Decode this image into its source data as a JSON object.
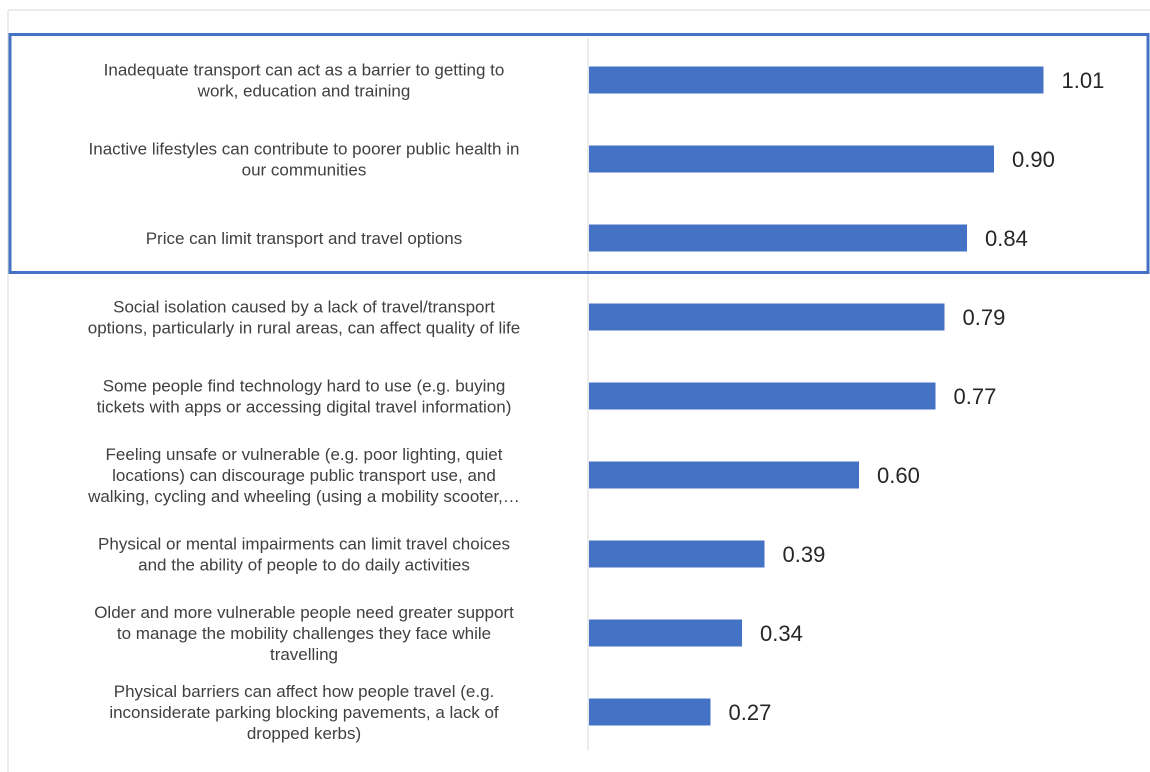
{
  "chart_data": {
    "type": "bar",
    "orientation": "horizontal",
    "title": "",
    "xlabel": "",
    "ylabel": "",
    "xlim": [
      0,
      1.1
    ],
    "grid": false,
    "legend": "none",
    "bar_color": "#4472C4",
    "highlight_color": "#4472C4",
    "highlight_count": 3,
    "categories": [
      [
        "Inadequate transport can act as a barrier to getting to",
        "work, education and training"
      ],
      [
        "Inactive lifestyles can contribute to poorer public health in",
        "our communities"
      ],
      [
        "Price can limit transport and travel options"
      ],
      [
        "Social isolation caused by a lack of travel/transport",
        "options, particularly in rural areas, can affect quality of life"
      ],
      [
        "Some people find technology hard to use (e.g. buying",
        "tickets with apps or accessing digital travel information)"
      ],
      [
        "Feeling unsafe or vulnerable (e.g. poor lighting, quiet",
        "locations) can discourage public transport use, and",
        "walking, cycling and wheeling (using a mobility scooter,…"
      ],
      [
        "Physical or mental impairments can limit travel choices",
        "and the ability of people to do daily activities"
      ],
      [
        "Older and more vulnerable people need greater support",
        "to manage the mobility challenges they face while",
        "travelling"
      ],
      [
        "Physical barriers can affect how people travel (e.g.",
        "inconsiderate parking blocking pavements, a lack of",
        "dropped kerbs)"
      ]
    ],
    "values": [
      1.01,
      0.9,
      0.84,
      0.79,
      0.77,
      0.6,
      0.39,
      0.34,
      0.27
    ],
    "value_labels": [
      "1.01",
      "0.90",
      "0.84",
      "0.79",
      "0.77",
      "0.60",
      "0.39",
      "0.34",
      "0.27"
    ]
  }
}
